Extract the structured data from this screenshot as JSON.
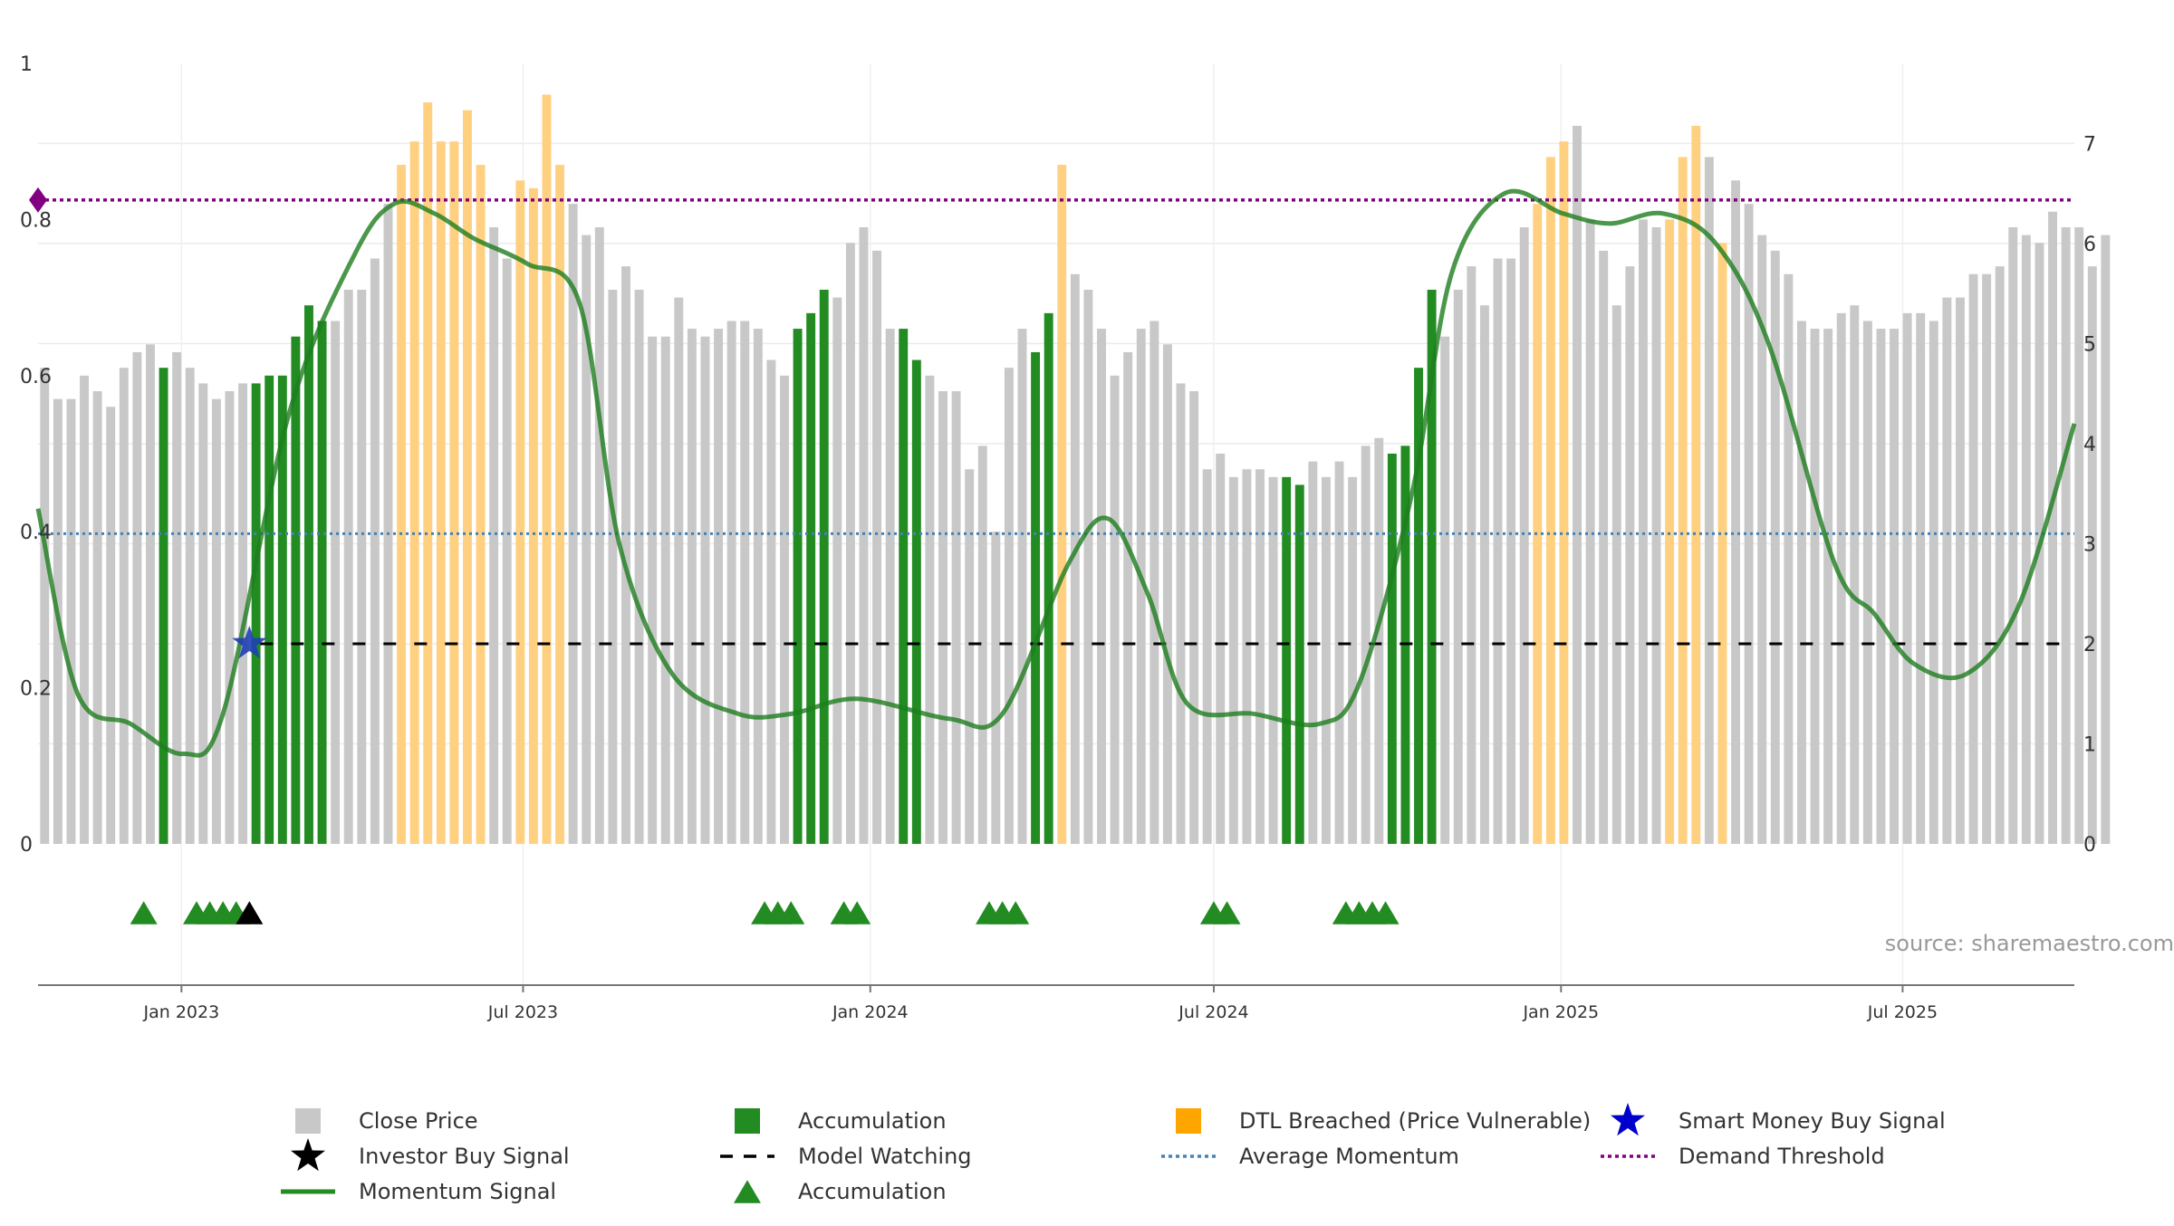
{
  "source_text": "source: sharemaestro.com",
  "chart_data": {
    "type": "bar",
    "left_axis": {
      "ylim": [
        0,
        1
      ],
      "ticks": [
        0,
        0.2,
        0.4,
        0.6,
        0.8,
        1
      ],
      "tick_labels": [
        "0",
        "0.2",
        "0.4",
        "0.6",
        "0.8",
        "1"
      ]
    },
    "right_axis": {
      "ylim": [
        0,
        7.8
      ],
      "ticks": [
        0,
        1,
        2,
        3,
        4,
        5,
        6,
        7
      ],
      "tick_labels": [
        "0",
        "1",
        "2",
        "3",
        "4",
        "5",
        "6",
        "7"
      ]
    },
    "x_axis": {
      "start": "2022-10-17",
      "end": "2025-09-30",
      "date_ticks": [
        {
          "date": "2023-01-01",
          "label": "Jan 2023"
        },
        {
          "date": "2023-07-01",
          "label": "Jul 2023"
        },
        {
          "date": "2024-01-01",
          "label": "Jan 2024"
        },
        {
          "date": "2024-07-01",
          "label": "Jul 2024"
        },
        {
          "date": "2025-01-01",
          "label": "Jan 2025"
        },
        {
          "date": "2025-07-01",
          "label": "Jul 2025"
        }
      ]
    },
    "grid": true,
    "colors": {
      "close": "#c8c8c8",
      "accumulation": "#228b22",
      "dtl": "#ffd080",
      "momentum": "#1e7d1e",
      "average": "#4682b4",
      "threshold": "#800080",
      "watching": "#000000",
      "buy_signal": "#1f3fb4"
    },
    "close_price": {
      "first_date": "2022-10-17",
      "interval_days": 7,
      "values": [
        0.61,
        0.57,
        0.57,
        0.6,
        0.58,
        0.56,
        0.61,
        0.63,
        0.64,
        0.61,
        0.63,
        0.61,
        0.59,
        0.57,
        0.58,
        0.59,
        0.59,
        0.6,
        0.6,
        0.65,
        0.69,
        0.67,
        0.67,
        0.71,
        0.71,
        0.75,
        0.82,
        0.87,
        0.9,
        0.95,
        0.9,
        0.9,
        0.94,
        0.87,
        0.79,
        0.75,
        0.85,
        0.84,
        0.96,
        0.87,
        0.82,
        0.78,
        0.79,
        0.71,
        0.74,
        0.71,
        0.65,
        0.65,
        0.7,
        0.66,
        0.65,
        0.66,
        0.67,
        0.67,
        0.66,
        0.62,
        0.6,
        0.66,
        0.68,
        0.71,
        0.7,
        0.77,
        0.79,
        0.76,
        0.66,
        0.66,
        0.62,
        0.6,
        0.58,
        0.58,
        0.48,
        0.51,
        0.4,
        0.61,
        0.66,
        0.63,
        0.68,
        0.87,
        0.73,
        0.71,
        0.66,
        0.6,
        0.63,
        0.66,
        0.67,
        0.64,
        0.59,
        0.58,
        0.48,
        0.5,
        0.47,
        0.48,
        0.48,
        0.47,
        0.47,
        0.46,
        0.49,
        0.47,
        0.49,
        0.47,
        0.51,
        0.52,
        0.5,
        0.51,
        0.61,
        0.71,
        0.65,
        0.71,
        0.74,
        0.69,
        0.75,
        0.75,
        0.79,
        0.82,
        0.88,
        0.9,
        0.92,
        0.8,
        0.76,
        0.69,
        0.74,
        0.8,
        0.79,
        0.8,
        0.88,
        0.92,
        0.88,
        0.77,
        0.85,
        0.82,
        0.78,
        0.76,
        0.73,
        0.67,
        0.66,
        0.66,
        0.68,
        0.69,
        0.67,
        0.66,
        0.66,
        0.68,
        0.68,
        0.67,
        0.7,
        0.7,
        0.73,
        0.73,
        0.74,
        0.79,
        0.78,
        0.77,
        0.81,
        0.79,
        0.79,
        0.74,
        0.78
      ],
      "accumulation_indices": [
        9,
        16,
        17,
        18,
        19,
        20,
        21,
        57,
        58,
        59,
        65,
        66,
        75,
        76,
        77,
        94,
        95,
        102,
        103,
        104,
        105
      ],
      "dtl_indices": [
        27,
        28,
        29,
        30,
        31,
        32,
        33,
        36,
        37,
        38,
        39,
        77,
        113,
        114,
        115,
        123,
        124,
        125,
        127
      ]
    },
    "momentum": {
      "dates": [
        "2022-10-17",
        "2022-11-07",
        "2022-12-05",
        "2023-01-02",
        "2023-01-23",
        "2023-02-27",
        "2023-04-03",
        "2023-04-24",
        "2023-05-15",
        "2023-06-05",
        "2023-07-03",
        "2023-07-31",
        "2023-08-21",
        "2023-09-18",
        "2023-10-23",
        "2023-11-20",
        "2023-12-25",
        "2024-02-12",
        "2024-03-11",
        "2024-04-15",
        "2024-05-06",
        "2024-05-27",
        "2024-06-17",
        "2024-07-22",
        "2024-08-26",
        "2024-09-16",
        "2024-10-14",
        "2024-11-04",
        "2024-12-02",
        "2025-01-02",
        "2025-01-27",
        "2025-02-24",
        "2025-03-24",
        "2025-04-21",
        "2025-05-26",
        "2025-06-16",
        "2025-07-07",
        "2025-08-04",
        "2025-09-01",
        "2025-09-30"
      ],
      "values": [
        3.35,
        1.5,
        1.2,
        0.9,
        1.3,
        4.3,
        5.9,
        6.4,
        6.3,
        6.05,
        5.8,
        5.4,
        3.0,
        1.7,
        1.3,
        1.3,
        1.45,
        1.25,
        1.3,
        2.8,
        3.25,
        2.5,
        1.4,
        1.3,
        1.2,
        1.6,
        3.5,
        5.7,
        6.5,
        6.3,
        6.2,
        6.3,
        6.0,
        5.0,
        2.8,
        2.3,
        1.8,
        1.7,
        2.4,
        4.2
      ]
    },
    "average_momentum": 3.1,
    "demand_threshold": 0.825,
    "model_watching": {
      "level": 2.0,
      "from": "2023-02-06",
      "to": "2025-09-30"
    },
    "smart_money_buy_signal": [
      {
        "date": "2023-02-06",
        "value": 2.0
      }
    ],
    "accumulation_markers": [
      "2022-12-12",
      "2023-01-09",
      "2023-01-16",
      "2023-01-23",
      "2023-01-30",
      "2023-11-06",
      "2023-11-13",
      "2023-11-20",
      "2023-12-18",
      "2023-12-25",
      "2024-03-04",
      "2024-03-11",
      "2024-03-18",
      "2024-07-01",
      "2024-07-08",
      "2024-09-09",
      "2024-09-16",
      "2024-09-23",
      "2024-09-30"
    ],
    "investor_buy_markers": [
      "2023-02-06"
    ],
    "legend": [
      {
        "label": "Close Price",
        "symbol": "square",
        "color": "#c8c8c8"
      },
      {
        "label": "Accumulation",
        "symbol": "square",
        "color": "#228b22"
      },
      {
        "label": "DTL Breached (Price Vulnerable)",
        "symbol": "square",
        "color": "#ffa500"
      },
      {
        "label": "Smart Money Buy Signal",
        "symbol": "star",
        "color": "#0000cc"
      },
      {
        "label": "Investor Buy Signal",
        "symbol": "star",
        "color": "#000000"
      },
      {
        "label": "Model Watching",
        "symbol": "dash",
        "color": "#000000"
      },
      {
        "label": "Average Momentum",
        "symbol": "dot",
        "color": "#4682b4"
      },
      {
        "label": "Demand Threshold",
        "symbol": "dot",
        "color": "#800080"
      },
      {
        "label": "Momentum Signal",
        "symbol": "line",
        "color": "#228b22"
      },
      {
        "label": "Accumulation",
        "symbol": "triangle",
        "color": "#228b22"
      }
    ]
  }
}
